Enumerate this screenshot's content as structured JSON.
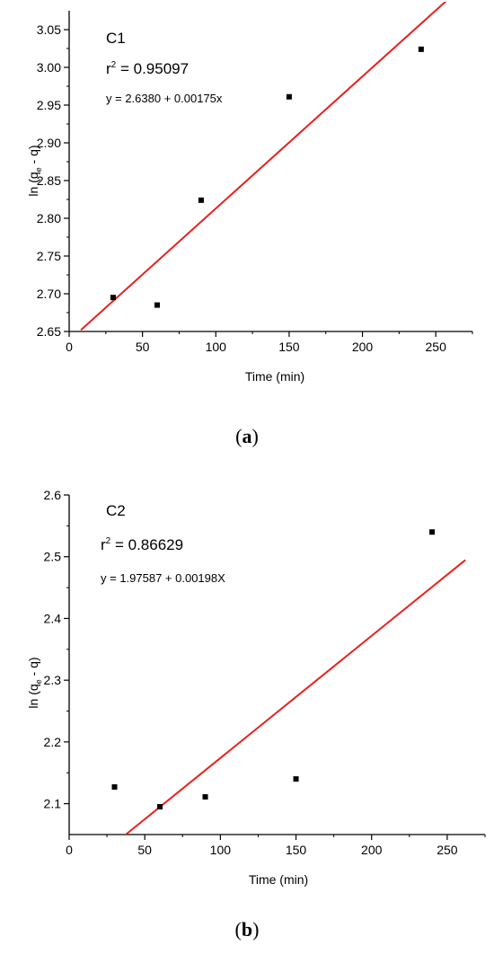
{
  "chart_data": [
    {
      "type": "scatter",
      "panel_label": "a",
      "xlabel": "Time (min)",
      "ylabel_main": "ln (q",
      "ylabel_sub": "e",
      "ylabel_tail": " - q)",
      "xlim": [
        0,
        275
      ],
      "ylim": [
        2.65,
        3.075
      ],
      "xticks": [
        0,
        50,
        100,
        150,
        200,
        250
      ],
      "yticks": [
        2.65,
        2.7,
        2.75,
        2.8,
        2.85,
        2.9,
        2.95,
        3.0,
        3.05
      ],
      "ytick_labels": [
        "2.65",
        "2.70",
        "2.75",
        "2.80",
        "2.85",
        "2.90",
        "2.95",
        "3.00",
        "3.05"
      ],
      "points": [
        {
          "x": 30,
          "y": 2.695
        },
        {
          "x": 60,
          "y": 2.685
        },
        {
          "x": 90,
          "y": 2.824
        },
        {
          "x": 150,
          "y": 2.961
        },
        {
          "x": 240,
          "y": 3.024
        }
      ],
      "fit": {
        "intercept": 2.638,
        "slope": 0.00175,
        "x_start": 8,
        "x_end": 263,
        "color": "#e8201c"
      },
      "annotations": {
        "label": "C1",
        "r2_prefix": "r",
        "r2_sup": "2",
        "r2_value": " = 0.95097",
        "equation": "y = 2.6380 + 0.00175x"
      }
    },
    {
      "type": "scatter",
      "panel_label": "b",
      "xlabel": "Time (min)",
      "ylabel_main": "ln (q",
      "ylabel_sub": "e",
      "ylabel_tail": " - q)",
      "xlim": [
        0,
        275
      ],
      "ylim": [
        2.05,
        2.6
      ],
      "xticks": [
        0,
        50,
        100,
        150,
        200,
        250
      ],
      "yticks": [
        2.1,
        2.2,
        2.3,
        2.4,
        2.5,
        2.6
      ],
      "ytick_labels": [
        "2.1",
        "2.2",
        "2.3",
        "2.4",
        "2.5",
        "2.6"
      ],
      "points": [
        {
          "x": 30,
          "y": 2.127
        },
        {
          "x": 60,
          "y": 2.095
        },
        {
          "x": 90,
          "y": 2.111
        },
        {
          "x": 150,
          "y": 2.14
        },
        {
          "x": 240,
          "y": 2.54
        }
      ],
      "fit": {
        "intercept": 1.97587,
        "slope": 0.00198,
        "x_start": 37,
        "x_end": 262,
        "color": "#e8201c"
      },
      "annotations": {
        "label": "C2",
        "r2_prefix": "r",
        "r2_sup": "2",
        "r2_value": " = 0.86629",
        "equation": "y = 1.97587 + 0.00198X"
      }
    }
  ]
}
